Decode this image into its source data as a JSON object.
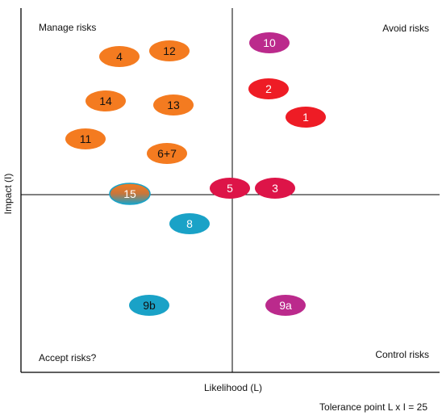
{
  "quadrants": {
    "top_left": "Manage risks",
    "top_right": "Avoid risks",
    "bottom_left": "Accept risks?",
    "bottom_right": "Control risks"
  },
  "axes": {
    "y_label": "Impact (I)",
    "x_label": "Likelihood (L)"
  },
  "footnote": "Tolerance point L x I = 25",
  "colors": {
    "orange": "#f47b20",
    "red": "#ee1c25",
    "magenta": "#bb2a8c",
    "teal": "#1aa2c7",
    "crimson": "#dd1448"
  },
  "risks": [
    {
      "id": "10",
      "color": "magenta",
      "text_color": "#ffffff"
    },
    {
      "id": "4",
      "color": "orange",
      "text_color": "#111111"
    },
    {
      "id": "12",
      "color": "orange",
      "text_color": "#111111"
    },
    {
      "id": "2",
      "color": "red",
      "text_color": "#ffffff"
    },
    {
      "id": "14",
      "color": "orange",
      "text_color": "#111111"
    },
    {
      "id": "13",
      "color": "orange",
      "text_color": "#111111"
    },
    {
      "id": "1",
      "color": "red",
      "text_color": "#ffffff"
    },
    {
      "id": "11",
      "color": "orange",
      "text_color": "#111111"
    },
    {
      "id": "6+7",
      "color": "orange",
      "text_color": "#111111"
    },
    {
      "id": "5",
      "color": "crimson",
      "text_color": "#ffffff"
    },
    {
      "id": "3",
      "color": "crimson",
      "text_color": "#ffffff"
    },
    {
      "id": "15",
      "color": "split",
      "text_color": "#ffffff"
    },
    {
      "id": "8",
      "color": "teal",
      "text_color": "#ffffff"
    },
    {
      "id": "9b",
      "color": "teal",
      "text_color": "#111111"
    },
    {
      "id": "9a",
      "color": "magenta",
      "text_color": "#ffffff"
    }
  ]
}
